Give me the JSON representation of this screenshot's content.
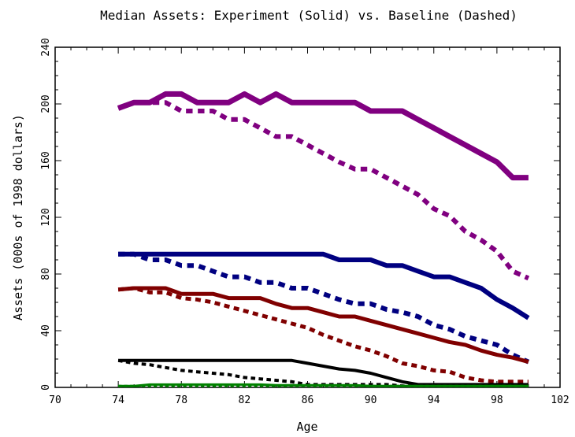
{
  "chart_data": {
    "type": "line",
    "title": "Median Assets:  Experiment (Solid) vs. Baseline (Dashed)",
    "xlabel": "Age",
    "ylabel": "Assets (000s of 1998 dollars)",
    "xlim": [
      70,
      102
    ],
    "ylim": [
      0,
      240
    ],
    "xticks": [
      70,
      74,
      78,
      82,
      86,
      90,
      94,
      98,
      102
    ],
    "yticks": [
      0,
      40,
      80,
      120,
      160,
      200,
      240
    ],
    "xtick_labels": [
      "70",
      "74",
      "78",
      "82",
      "86",
      "90",
      "94",
      "98",
      "102"
    ],
    "ytick_labels": [
      "0",
      "40",
      "80",
      "120",
      "160",
      "200",
      "240"
    ],
    "grid": false,
    "legend": "none",
    "x": [
      74,
      75,
      76,
      77,
      78,
      79,
      80,
      81,
      82,
      83,
      84,
      85,
      86,
      87,
      88,
      89,
      90,
      91,
      92,
      93,
      94,
      95,
      96,
      97,
      98,
      99,
      100
    ],
    "series": [
      {
        "color": "#800080",
        "style": "solid",
        "width": 7,
        "values": [
          197,
          201,
          201,
          207,
          207,
          201,
          201,
          201,
          207,
          201,
          207,
          201,
          201,
          201,
          201,
          201,
          195,
          195,
          195,
          189,
          183,
          177,
          171,
          165,
          159,
          148,
          148
        ]
      },
      {
        "color": "#800080",
        "style": "dashed",
        "width": 6,
        "values": [
          197,
          201,
          201,
          201,
          195,
          195,
          195,
          189,
          189,
          183,
          177,
          177,
          171,
          165,
          159,
          154,
          154,
          148,
          142,
          136,
          126,
          121,
          110,
          104,
          96,
          82,
          77
        ]
      },
      {
        "color": "#000080",
        "style": "solid",
        "width": 6,
        "values": [
          94,
          94,
          94,
          94,
          94,
          94,
          94,
          94,
          94,
          94,
          94,
          94,
          94,
          94,
          90,
          90,
          90,
          86,
          86,
          82,
          78,
          78,
          74,
          70,
          62,
          56,
          49
        ]
      },
      {
        "color": "#000080",
        "style": "dashed",
        "width": 6,
        "values": [
          94,
          94,
          90,
          90,
          86,
          86,
          82,
          78,
          78,
          74,
          74,
          70,
          70,
          66,
          62,
          59,
          59,
          55,
          53,
          50,
          44,
          41,
          36,
          33,
          30,
          23,
          18
        ]
      },
      {
        "color": "#800000",
        "style": "solid",
        "width": 5,
        "values": [
          69,
          70,
          70,
          70,
          66,
          66,
          66,
          63,
          63,
          63,
          59,
          56,
          56,
          53,
          50,
          50,
          47,
          44,
          41,
          38,
          35,
          32,
          30,
          26,
          23,
          21,
          18
        ]
      },
      {
        "color": "#800000",
        "style": "dashed",
        "width": 5,
        "values": [
          69,
          70,
          67,
          67,
          63,
          62,
          60,
          57,
          54,
          51,
          48,
          45,
          42,
          37,
          33,
          29,
          26,
          22,
          17,
          15,
          12,
          11,
          7,
          5,
          4,
          4,
          4
        ]
      },
      {
        "color": "#000000",
        "style": "solid",
        "width": 4,
        "values": [
          19,
          19,
          19,
          19,
          19,
          19,
          19,
          19,
          19,
          19,
          19,
          19,
          17,
          15,
          13,
          12,
          10,
          7,
          4,
          2,
          2,
          2,
          2,
          2,
          2,
          2,
          2
        ]
      },
      {
        "color": "#000000",
        "style": "dashed",
        "width": 4,
        "values": [
          19,
          17,
          16,
          14,
          12,
          11,
          10,
          9,
          7,
          6,
          5,
          4,
          2,
          2,
          2,
          2,
          2,
          2,
          1,
          1,
          1,
          1,
          1,
          1,
          1,
          1,
          1
        ]
      },
      {
        "color": "#008000",
        "style": "solid",
        "width": 3,
        "values": [
          1,
          1,
          2,
          2,
          2,
          2,
          2,
          2,
          2,
          2,
          1.5,
          1.5,
          1.5,
          1.5,
          1.5,
          1.5,
          1,
          1,
          1,
          1,
          1,
          1,
          1,
          1,
          1,
          1,
          1
        ]
      },
      {
        "color": "#008000",
        "style": "dashed",
        "width": 3,
        "values": [
          1,
          1,
          1,
          1,
          1,
          1,
          1,
          1,
          1,
          1,
          1,
          1,
          1,
          1,
          1,
          1,
          1,
          1,
          1,
          1,
          1,
          1,
          1,
          1,
          1,
          1,
          1
        ]
      }
    ]
  }
}
